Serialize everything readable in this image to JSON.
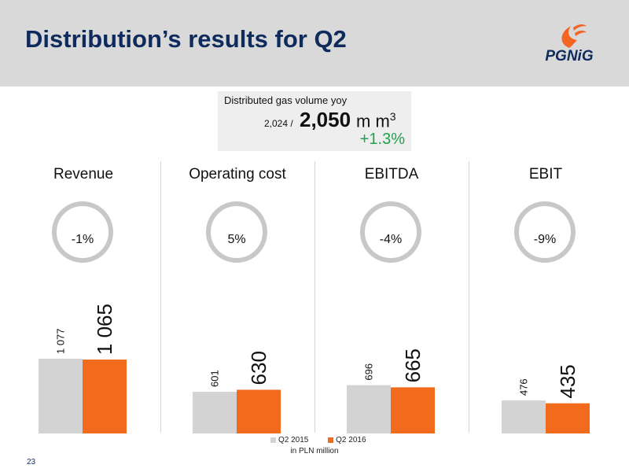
{
  "slide": {
    "title": "Distribution’s results for Q2",
    "page_number": "23"
  },
  "logo": {
    "text": "PGNiG",
    "flame_color": "#f26522",
    "text_color": "#0f2a5c"
  },
  "gas_volume": {
    "label": "Distributed gas volume yoy",
    "previous": "2,024 /",
    "current": "2,050",
    "unit": "m m",
    "unit_superscript": "3",
    "change": "+1.3%",
    "change_color": "#22a04b"
  },
  "colors": {
    "q2_2015": "#d3d3d3",
    "q2_2016": "#f26b1d",
    "ring": "#c8c8c8",
    "title": "#0f2a5c"
  },
  "chart_data": [
    {
      "type": "bar",
      "title": "Revenue",
      "categories": [
        "Q2 2015",
        "Q2 2016"
      ],
      "values": [
        1077,
        1065
      ],
      "value_labels": [
        "1 077",
        "1 065"
      ],
      "change_label": "-1%"
    },
    {
      "type": "bar",
      "title": "Operating cost",
      "categories": [
        "Q2 2015",
        "Q2 2016"
      ],
      "values": [
        601,
        630
      ],
      "value_labels": [
        "601",
        "630"
      ],
      "change_label": "5%"
    },
    {
      "type": "bar",
      "title": "EBITDA",
      "categories": [
        "Q2 2015",
        "Q2 2016"
      ],
      "values": [
        696,
        665
      ],
      "value_labels": [
        "696",
        "665"
      ],
      "change_label": "-4%"
    },
    {
      "type": "bar",
      "title": "EBIT",
      "categories": [
        "Q2 2015",
        "Q2 2016"
      ],
      "values": [
        476,
        435
      ],
      "value_labels": [
        "476",
        "435"
      ],
      "change_label": "-9%"
    }
  ],
  "legend": {
    "items": [
      "Q2 2015",
      "Q2 2016"
    ],
    "unit_note": "in PLN million"
  }
}
